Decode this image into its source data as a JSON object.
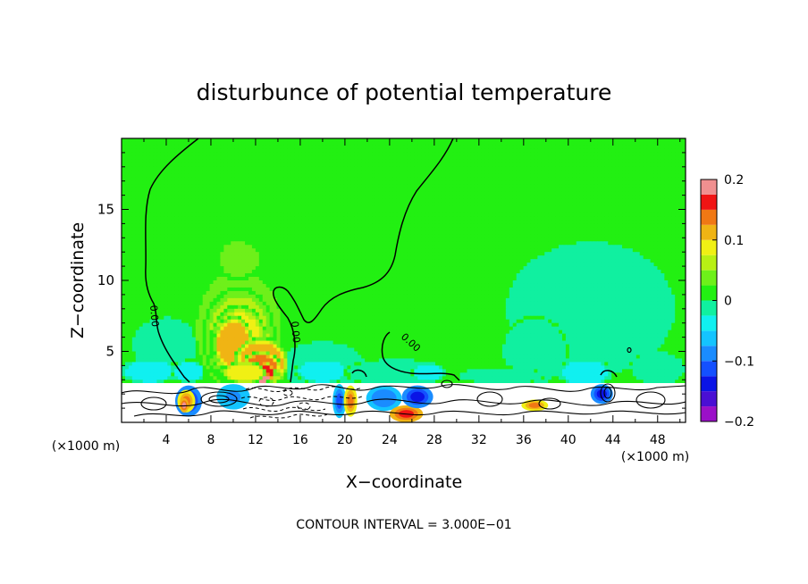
{
  "chart_data": {
    "type": "heatmap",
    "title": "disturbunce of potential temperature",
    "xlabel": "X−coordinate",
    "ylabel": "Z−coordinate",
    "x_unit_left": "(×1000 m)",
    "x_unit_right": "(×1000 m)",
    "footer": "CONTOUR INTERVAL = 3.000E−01",
    "xlim": [
      0,
      50.5
    ],
    "ylim": [
      0,
      20
    ],
    "x_ticks": [
      "4",
      "8",
      "12",
      "16",
      "20",
      "24",
      "28",
      "32",
      "36",
      "40",
      "44",
      "48"
    ],
    "y_ticks": [
      "5",
      "10",
      "15"
    ],
    "contour_labels": [
      "0.00",
      "0.00",
      "0.00"
    ],
    "grid": false,
    "colorbar": {
      "placement": "right",
      "range": [
        -0.2,
        0.2
      ],
      "tick_labels": [
        "0.2",
        "0.1",
        "0",
        "−0.1",
        "−0.2"
      ],
      "levels": [
        {
          "from": -0.2,
          "to": -0.175,
          "color": "#9b10c8"
        },
        {
          "from": -0.175,
          "to": -0.15,
          "color": "#4a0fd4"
        },
        {
          "from": -0.15,
          "to": -0.125,
          "color": "#0a14e6"
        },
        {
          "from": -0.125,
          "to": -0.1,
          "color": "#1450ff"
        },
        {
          "from": -0.1,
          "to": -0.075,
          "color": "#1a8cff"
        },
        {
          "from": -0.075,
          "to": -0.05,
          "color": "#14c4ff"
        },
        {
          "from": -0.05,
          "to": -0.025,
          "color": "#10f0f0"
        },
        {
          "from": -0.025,
          "to": 0.0,
          "color": "#10f0a0"
        },
        {
          "from": 0.0,
          "to": 0.025,
          "color": "#22f012"
        },
        {
          "from": 0.025,
          "to": 0.05,
          "color": "#6ef01a"
        },
        {
          "from": 0.05,
          "to": 0.075,
          "color": "#b8f014"
        },
        {
          "from": 0.075,
          "to": 0.1,
          "color": "#f0f014"
        },
        {
          "from": 0.1,
          "to": 0.125,
          "color": "#f0b414"
        },
        {
          "from": 0.125,
          "to": 0.15,
          "color": "#f07814"
        },
        {
          "from": 0.15,
          "to": 0.175,
          "color": "#f01414"
        },
        {
          "from": 0.175,
          "to": 0.2,
          "color": "#f09090"
        }
      ]
    },
    "background_value": 0.005,
    "features": [
      {
        "kind": "blob",
        "x": 10.5,
        "z": 6.5,
        "rx": 4.5,
        "rz": 5.0,
        "value": 0.035
      },
      {
        "kind": "blob",
        "x": 10.5,
        "z": 6.0,
        "rx": 3.3,
        "rz": 3.6,
        "value": 0.06
      },
      {
        "kind": "blob",
        "x": 10.5,
        "z": 5.5,
        "rx": 2.6,
        "rz": 2.8,
        "value": 0.085
      },
      {
        "kind": "blob",
        "x": 10.0,
        "z": 5.5,
        "rx": 1.8,
        "rz": 2.0,
        "value": 0.11
      },
      {
        "kind": "blob",
        "x": 12.5,
        "z": 4.2,
        "rx": 2.5,
        "rz": 1.8,
        "value": 0.11
      },
      {
        "kind": "blob",
        "x": 12.5,
        "z": 3.8,
        "rx": 1.8,
        "rz": 1.2,
        "value": 0.13
      },
      {
        "kind": "blob",
        "x": 12.5,
        "z": 3.5,
        "rx": 1.3,
        "rz": 0.8,
        "value": 0.16
      },
      {
        "kind": "blob",
        "x": 12.5,
        "z": 3.2,
        "rx": 0.8,
        "rz": 0.5,
        "value": 0.19
      },
      {
        "kind": "blob",
        "x": 11.0,
        "z": 3.5,
        "rx": 2.0,
        "rz": 0.8,
        "value": 0.085
      },
      {
        "kind": "blob",
        "x": 10.5,
        "z": 11.5,
        "rx": 2.2,
        "rz": 1.5,
        "value": 0.03
      },
      {
        "kind": "blob",
        "x": 4.0,
        "z": 5.5,
        "rx": 3.2,
        "rz": 2.0,
        "value": -0.015
      },
      {
        "kind": "blob",
        "x": 2.5,
        "z": 3.6,
        "rx": 2.6,
        "rz": 0.9,
        "value": -0.04
      },
      {
        "kind": "blob",
        "x": 6.0,
        "z": 3.6,
        "rx": 1.5,
        "rz": 0.8,
        "value": -0.035
      },
      {
        "kind": "blob",
        "x": 18.0,
        "z": 4.0,
        "rx": 4.0,
        "rz": 1.8,
        "value": -0.015
      },
      {
        "kind": "blob",
        "x": 18.0,
        "z": 3.6,
        "rx": 2.5,
        "rz": 0.9,
        "value": -0.04
      },
      {
        "kind": "blob",
        "x": 24.5,
        "z": 3.5,
        "rx": 4.5,
        "rz": 1.0,
        "value": -0.015
      },
      {
        "kind": "blob",
        "x": 27.5,
        "z": 3.5,
        "rx": 1.5,
        "rz": 0.7,
        "value": -0.035
      },
      {
        "kind": "blob",
        "x": 42.0,
        "z": 8.0,
        "rx": 8.0,
        "rz": 5.0,
        "value": -0.015
      },
      {
        "kind": "blob",
        "x": 37.0,
        "z": 5.0,
        "rx": 3.0,
        "rz": 2.5,
        "value": -0.012
      },
      {
        "kind": "blob",
        "x": 41.5,
        "z": 3.5,
        "rx": 2.5,
        "rz": 1.0,
        "value": -0.04
      },
      {
        "kind": "blob",
        "x": 48.0,
        "z": 3.8,
        "rx": 2.5,
        "rz": 1.2,
        "value": -0.025
      },
      {
        "kind": "blob",
        "x": 34.0,
        "z": 3.3,
        "rx": 4.0,
        "rz": 0.6,
        "value": -0.015
      },
      {
        "kind": "blob",
        "x": 6.0,
        "z": 1.5,
        "rx": 1.2,
        "rz": 1.1,
        "value": -0.13
      },
      {
        "kind": "blob",
        "x": 5.8,
        "z": 1.5,
        "rx": 0.8,
        "rz": 0.8,
        "value": 0.14
      },
      {
        "kind": "blob",
        "x": 5.6,
        "z": 1.2,
        "rx": 0.4,
        "rz": 0.5,
        "value": 0.18
      },
      {
        "kind": "blob",
        "x": 10.0,
        "z": 1.8,
        "rx": 1.5,
        "rz": 0.9,
        "value": -0.09
      },
      {
        "kind": "blob",
        "x": 19.5,
        "z": 1.5,
        "rx": 0.6,
        "rz": 1.2,
        "value": -0.12
      },
      {
        "kind": "blob",
        "x": 20.5,
        "z": 1.5,
        "rx": 0.6,
        "rz": 1.1,
        "value": 0.13
      },
      {
        "kind": "blob",
        "x": 23.5,
        "z": 1.7,
        "rx": 1.6,
        "rz": 0.9,
        "value": -0.1
      },
      {
        "kind": "blob",
        "x": 25.5,
        "z": 0.6,
        "rx": 1.5,
        "rz": 0.6,
        "value": 0.17
      },
      {
        "kind": "blob",
        "x": 26.5,
        "z": 1.8,
        "rx": 1.4,
        "rz": 0.8,
        "value": -0.14
      },
      {
        "kind": "blob",
        "x": 37.0,
        "z": 1.2,
        "rx": 1.2,
        "rz": 0.4,
        "value": 0.14
      },
      {
        "kind": "blob",
        "x": 43.0,
        "z": 2.0,
        "rx": 1.0,
        "rz": 0.7,
        "value": -0.13
      }
    ]
  }
}
